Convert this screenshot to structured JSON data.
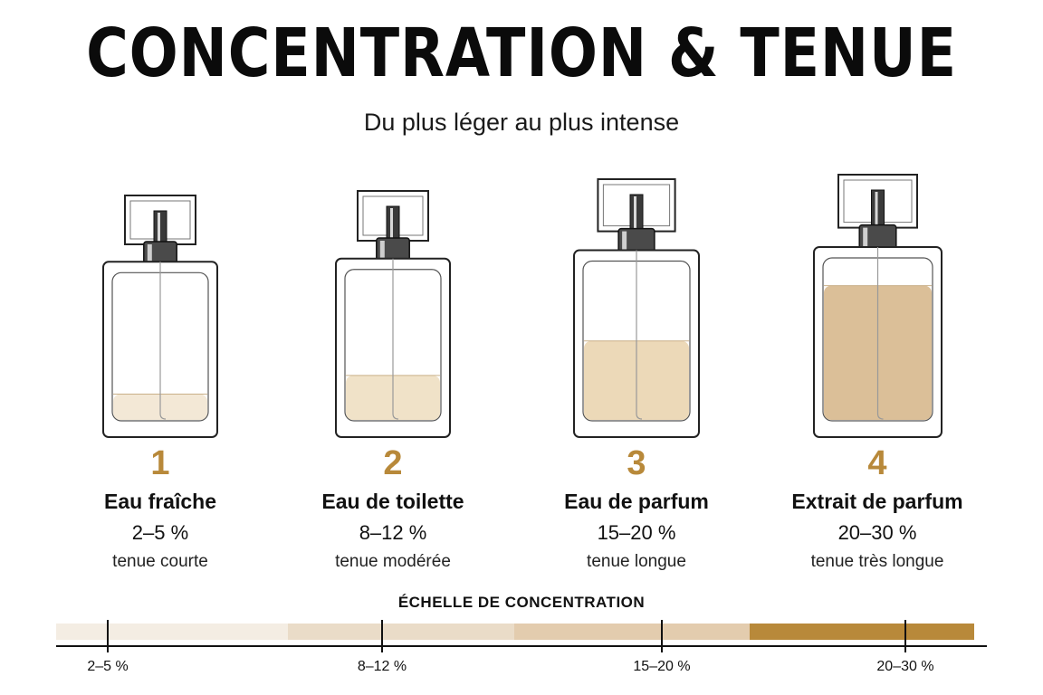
{
  "title": "CONCENTRATION & TENUE",
  "subtitle": "Du plus léger au plus intense",
  "accent_color": "#b8893a",
  "items": [
    {
      "number": "1",
      "name": "Eau fraîche",
      "concentration": "2–5 %",
      "wear": "tenue courte",
      "fill_level": 0.18,
      "liquid_color": "#f3e8d6"
    },
    {
      "number": "2",
      "name": "Eau de toilette",
      "concentration": "8–12 %",
      "wear": "tenue modérée",
      "fill_level": 0.3,
      "liquid_color": "#f0e2c8"
    },
    {
      "number": "3",
      "name": "Eau de parfum",
      "concentration": "15–20 %",
      "wear": "tenue longue",
      "fill_level": 0.5,
      "liquid_color": "#ecd9b8"
    },
    {
      "number": "4",
      "name": "Extrait de parfum",
      "concentration": "20–30 %",
      "wear": "tenue très longue",
      "fill_level": 0.83,
      "liquid_color": "#dbbf98"
    }
  ],
  "scale": {
    "title": "ÉCHELLE DE CONCENTRATION",
    "segment_colors": [
      "#f4ede3",
      "#eadcc8",
      "#e3ccae",
      "#b8893a"
    ],
    "tick_labels": [
      "2–5 %",
      "8–12 %",
      "15–20 %",
      "20–30 %"
    ]
  }
}
